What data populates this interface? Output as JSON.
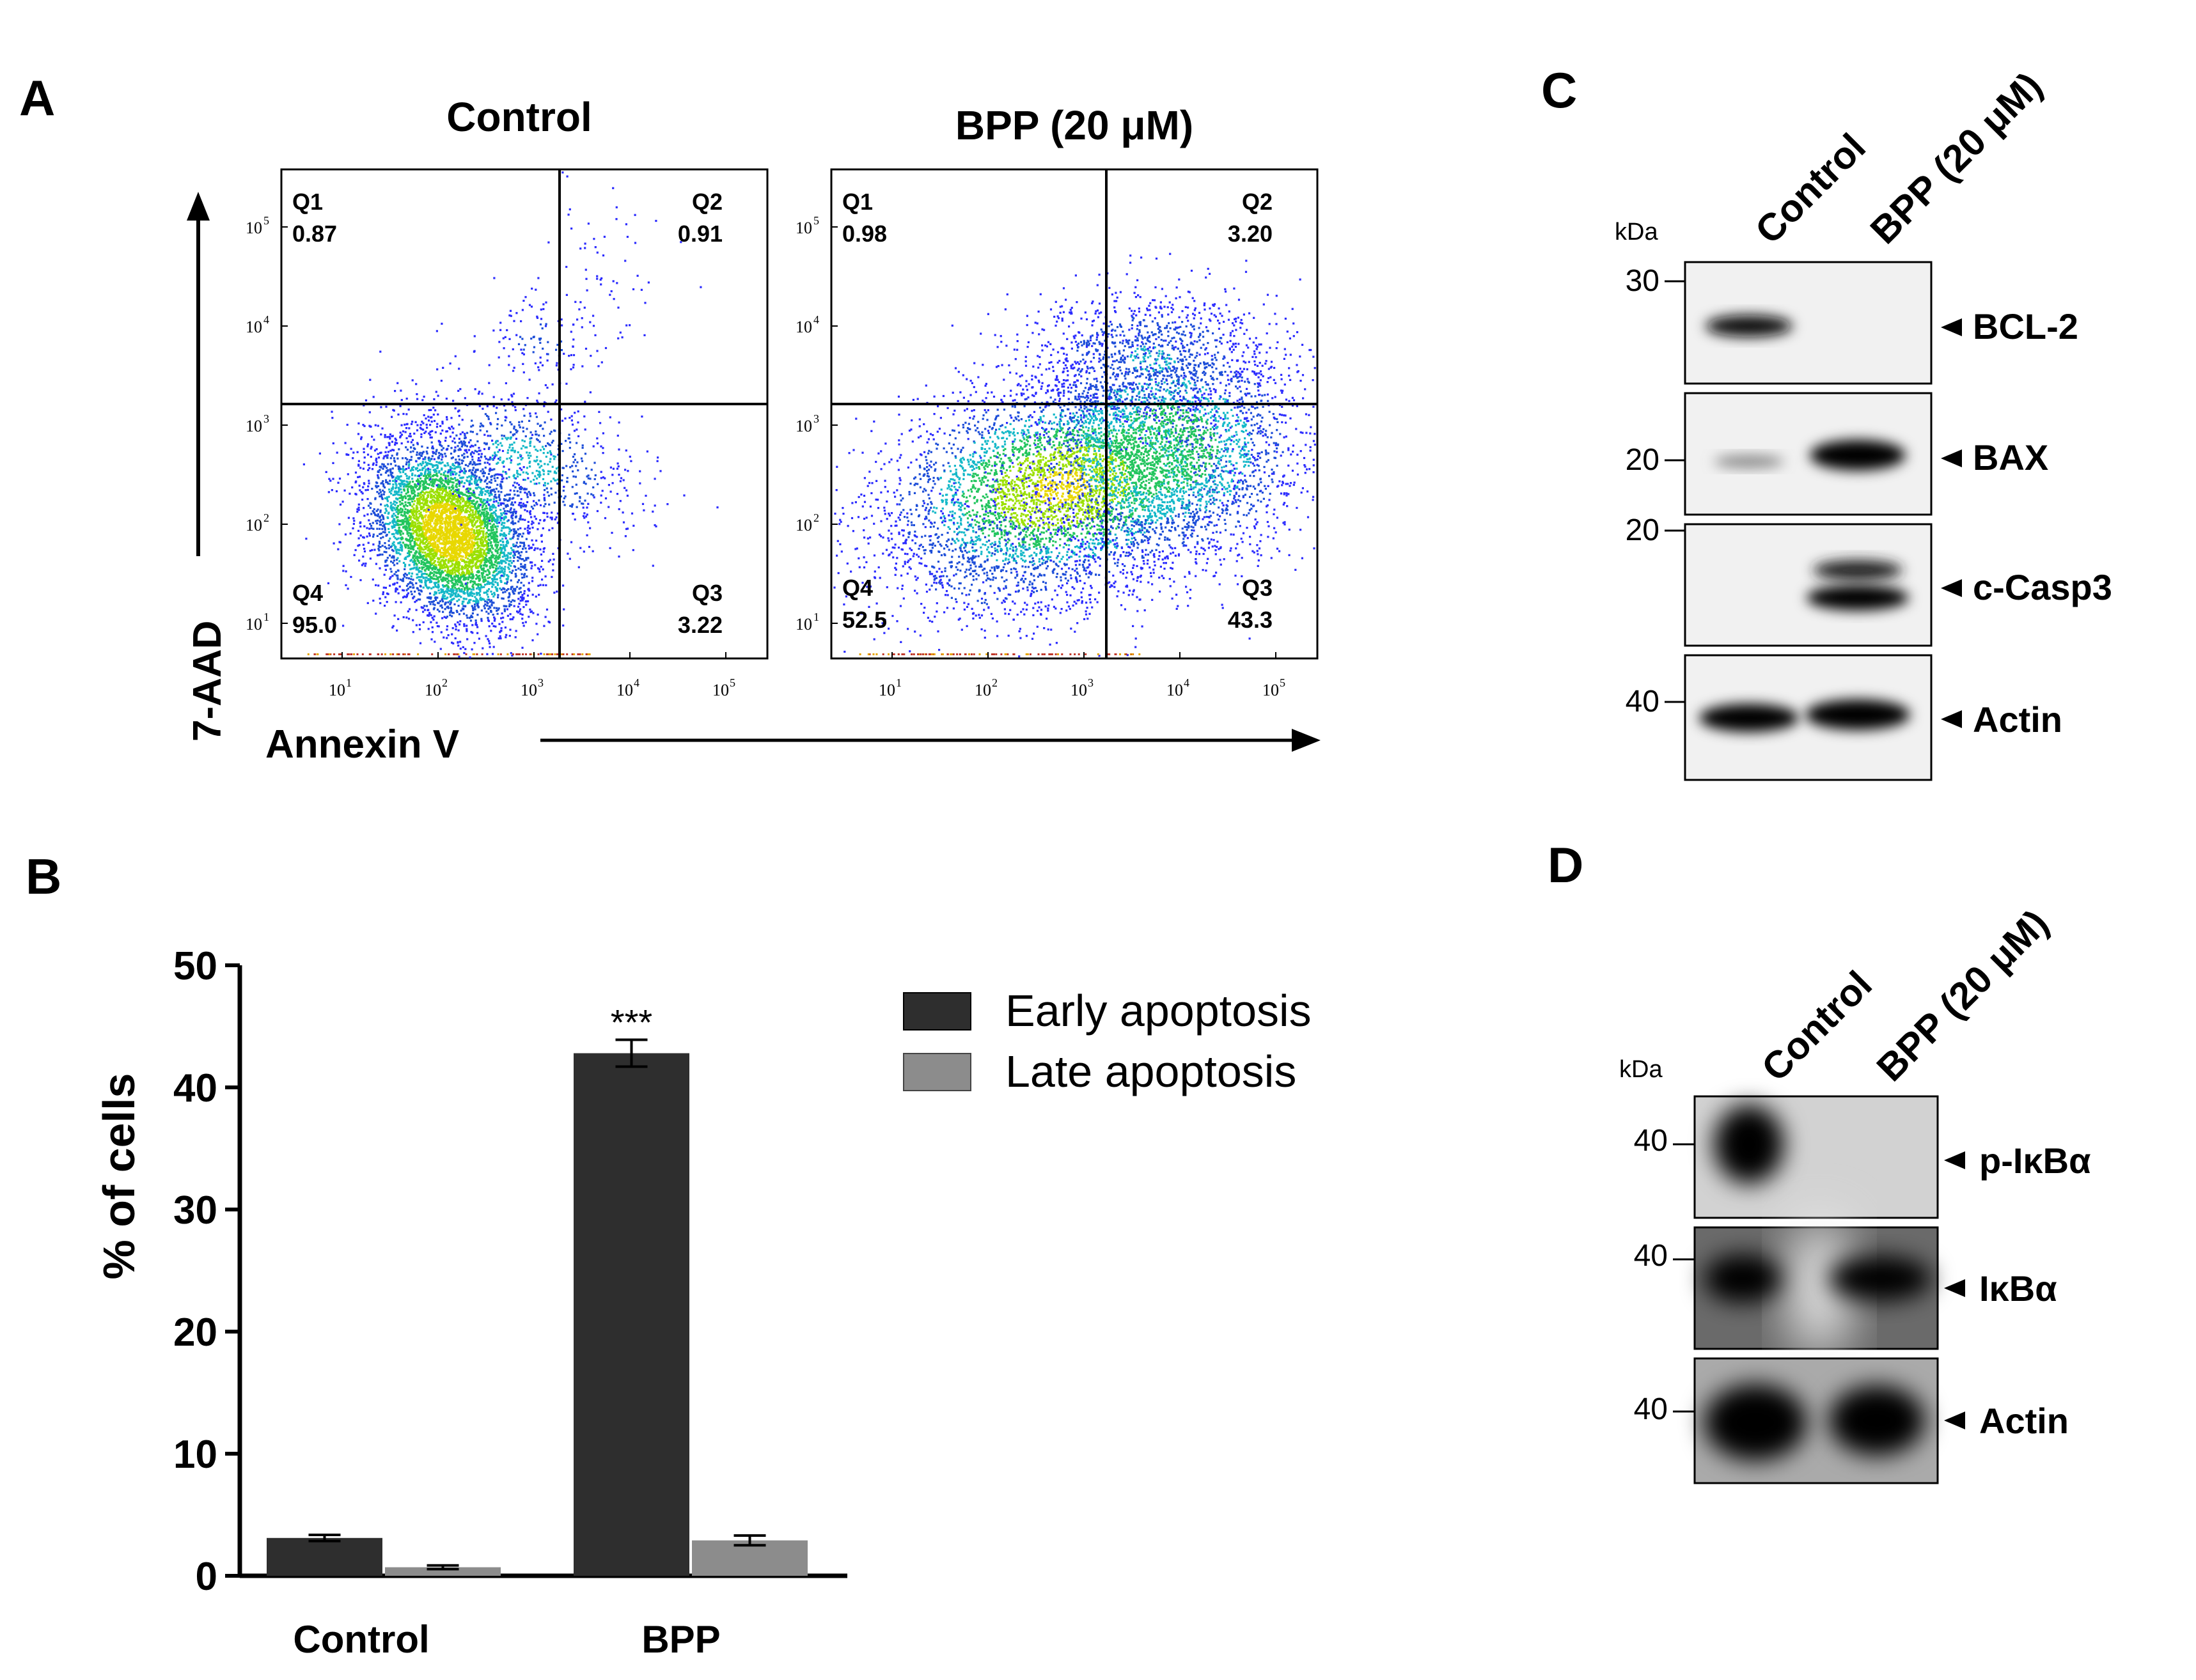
{
  "panels": {
    "a": "A",
    "b": "B",
    "c": "C",
    "d": "D"
  },
  "flow": {
    "y_axis_label": "7-AAD",
    "x_axis_label": "Annexin V",
    "plots": [
      {
        "title": "Control",
        "quadrants": {
          "Q1": "0.87",
          "Q2": "0.91",
          "Q3": "3.22",
          "Q4": "95.0"
        }
      },
      {
        "title": "BPP (20 μM)",
        "quadrants": {
          "Q1": "0.98",
          "Q2": "3.20",
          "Q3": "43.3",
          "Q4": "52.5"
        }
      }
    ],
    "quadrant_names": {
      "q1": "Q1",
      "q2": "Q2",
      "q3": "Q3",
      "q4": "Q4"
    },
    "tick_base": "10",
    "tick_exponents": [
      "1",
      "2",
      "3",
      "4",
      "5"
    ]
  },
  "chart_data": {
    "type": "bar",
    "categories": [
      "Control",
      "BPP"
    ],
    "series": [
      {
        "name": "Early apoptosis",
        "values": [
          3.1,
          42.8
        ],
        "errors": [
          0.25,
          1.1
        ],
        "color": "#2e2e2e"
      },
      {
        "name": "Late apoptosis",
        "values": [
          0.7,
          2.9
        ],
        "errors": [
          0.15,
          0.4
        ],
        "color": "#8c8c8c"
      }
    ],
    "ylabel": "% of cells",
    "xlabel": "",
    "ylim": [
      0,
      50
    ],
    "yticks": [
      "0",
      "10",
      "20",
      "30",
      "40",
      "50"
    ],
    "annotation": "***",
    "legend_position": "top-right"
  },
  "blot_c": {
    "lanes": [
      "Control",
      "BPP (20 μM)"
    ],
    "unit": "kDa",
    "markers": [
      "30",
      "20",
      "20",
      "40"
    ],
    "proteins": [
      "BCL-2",
      "BAX",
      "c-Casp3",
      "Actin"
    ]
  },
  "blot_d": {
    "lanes": [
      "Control",
      "BPP (20 μM)"
    ],
    "unit": "kDa",
    "markers": [
      "40",
      "40",
      "40"
    ],
    "proteins": [
      "p-IκBα",
      "IκBα",
      "Actin"
    ]
  },
  "colors": {
    "early": "#2e2e2e",
    "late": "#8c8c8c",
    "axis": "#000000"
  }
}
